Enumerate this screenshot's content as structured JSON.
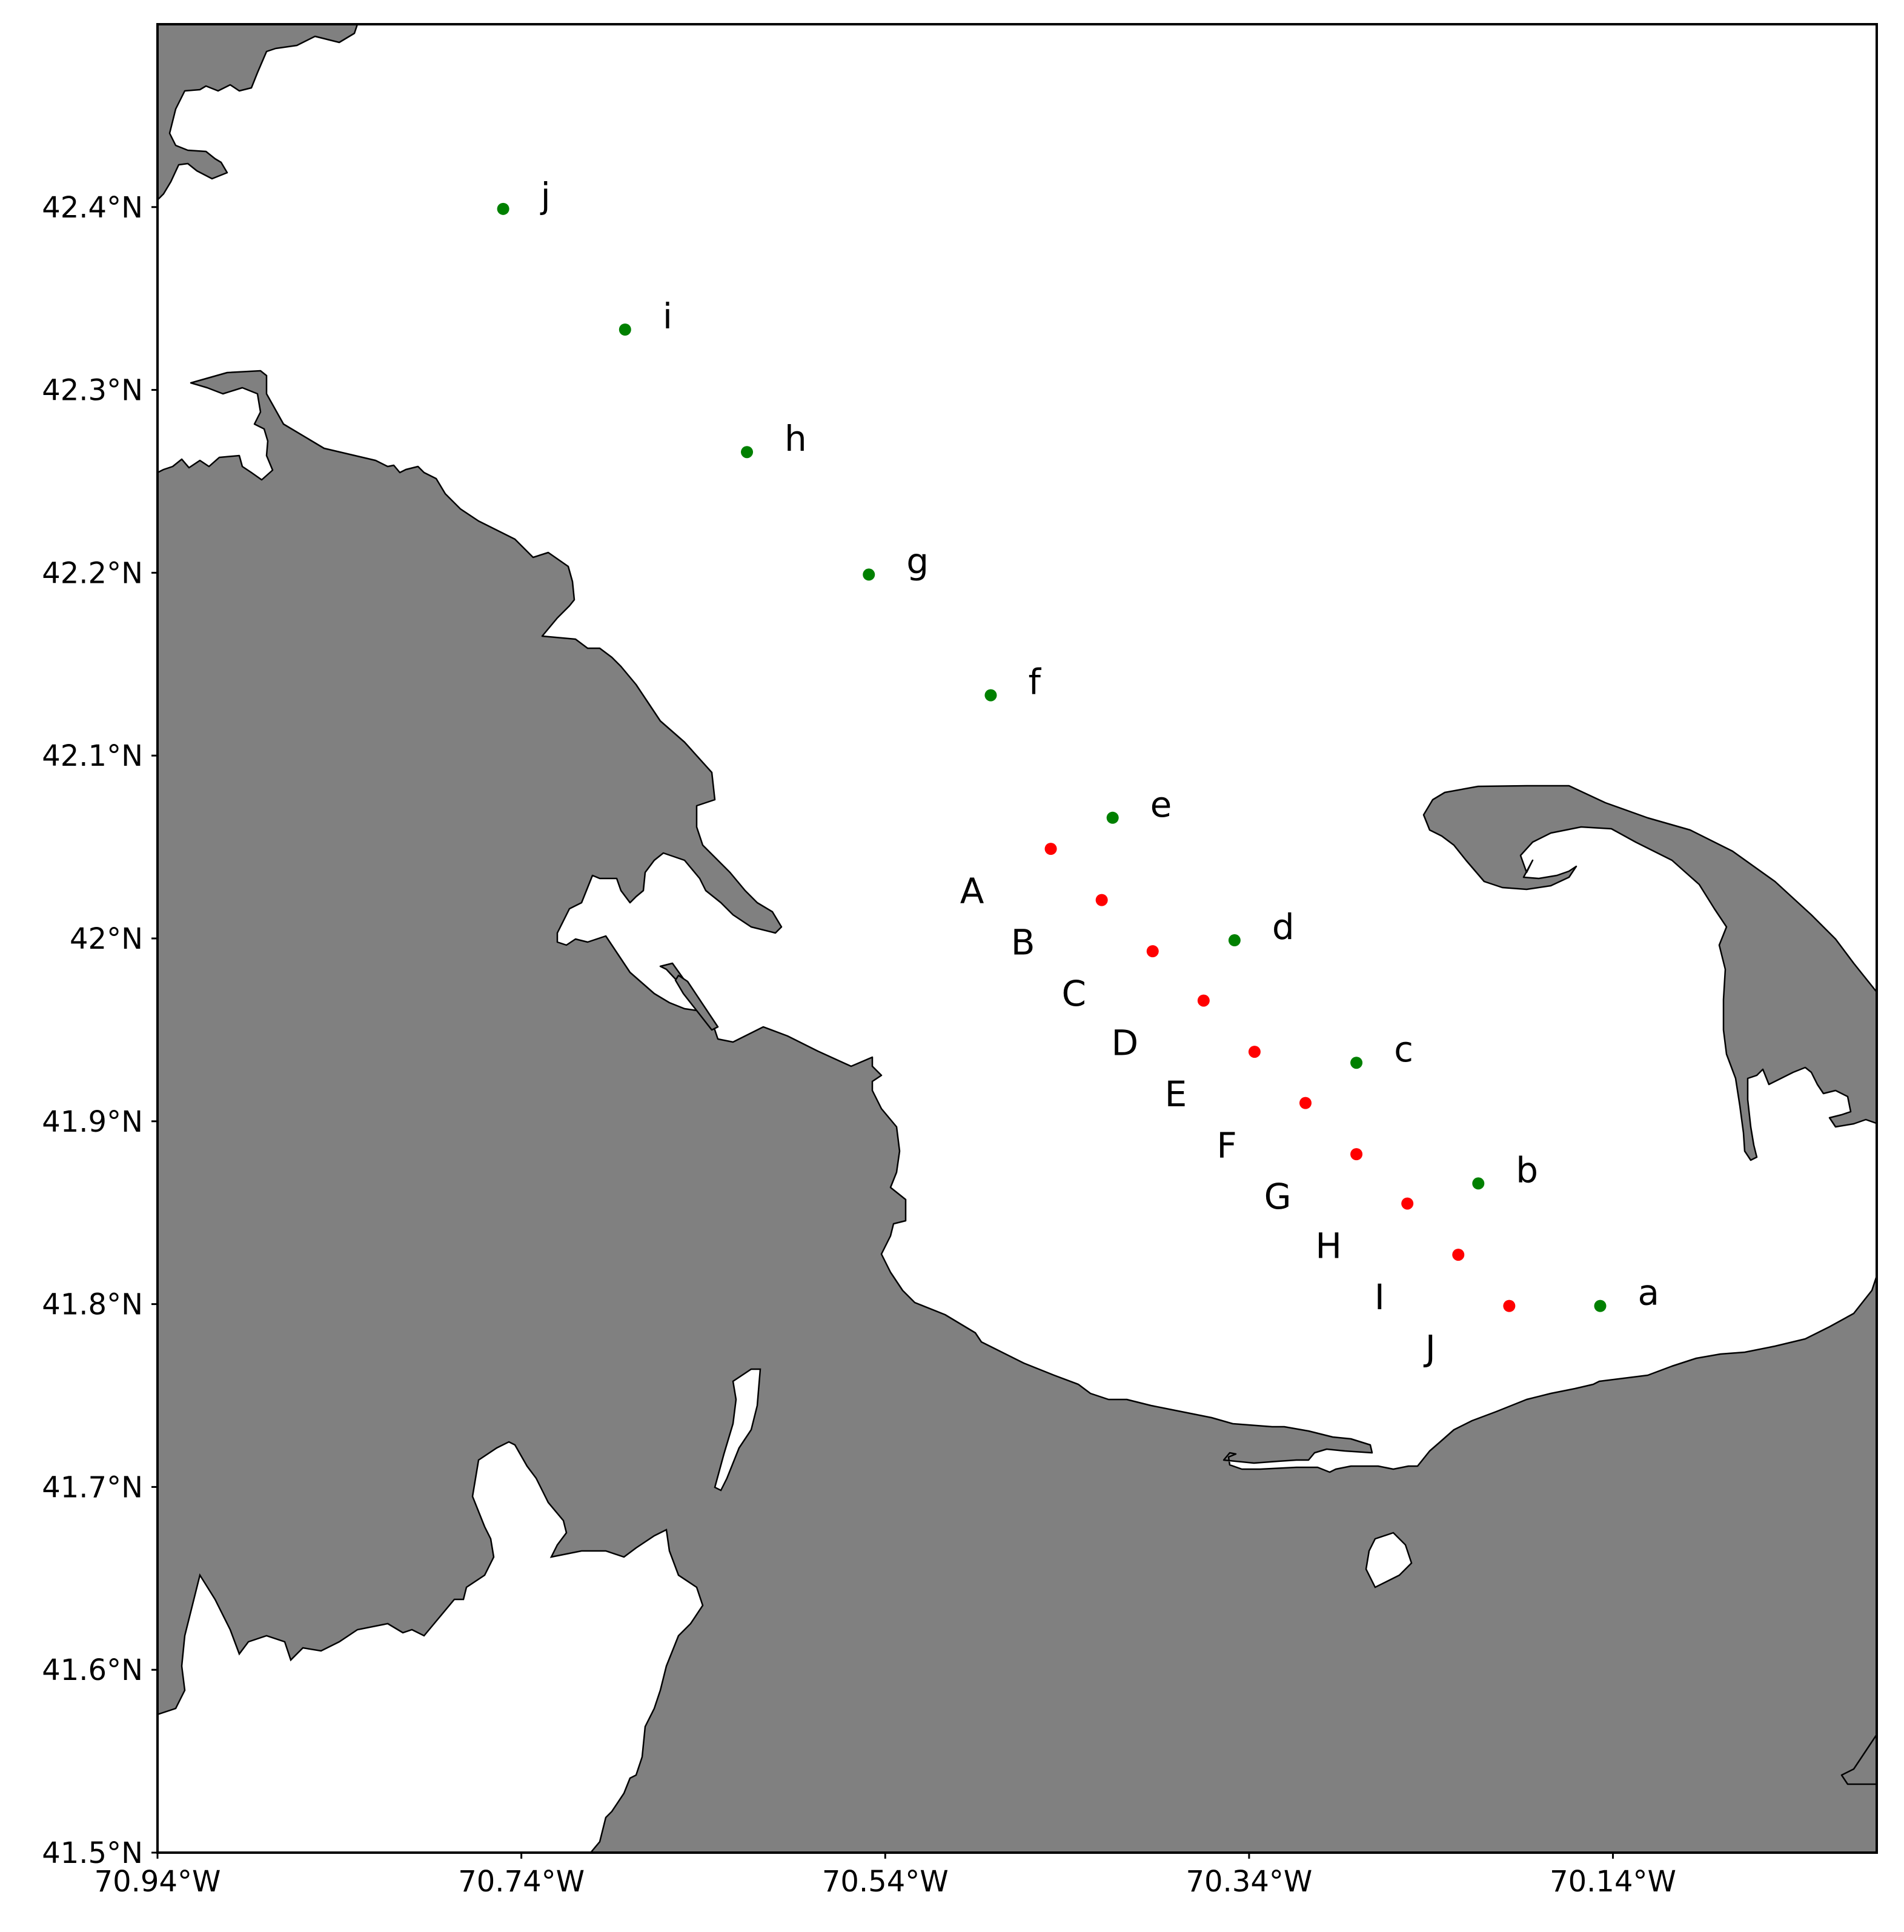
{
  "map": {
    "projection": "PlateCarree",
    "extent": {
      "lon_min": -70.94,
      "lon_max": -69.995,
      "lat_min": 41.5,
      "lat_max": 42.5
    },
    "land_color": "#808080",
    "water_color": "#ffffff",
    "x_ticks": [
      {
        "lon": -70.94,
        "label": "70.94°W"
      },
      {
        "lon": -70.74,
        "label": "70.74°W"
      },
      {
        "lon": -70.54,
        "label": "70.54°W"
      },
      {
        "lon": -70.34,
        "label": "70.34°W"
      },
      {
        "lon": -70.14,
        "label": "70.14°W"
      }
    ],
    "y_ticks": [
      {
        "lat": 42.4,
        "label": "42.4°N"
      },
      {
        "lat": 42.3,
        "label": "42.3°N"
      },
      {
        "lat": 42.2,
        "label": "42.2°N"
      },
      {
        "lat": 42.1,
        "label": "42.1°N"
      },
      {
        "lat": 42.0,
        "label": "42°N"
      },
      {
        "lat": 41.9,
        "label": "41.9°N"
      },
      {
        "lat": 41.8,
        "label": "41.8°N"
      },
      {
        "lat": 41.7,
        "label": "41.7°N"
      },
      {
        "lat": 41.6,
        "label": "41.6°N"
      },
      {
        "lat": 41.5,
        "label": "41.5°N"
      }
    ],
    "green_stations": {
      "color": "#008000",
      "points": [
        {
          "label": "a",
          "lon": -70.147,
          "lat": 41.799
        },
        {
          "label": "b",
          "lon": -70.214,
          "lat": 41.866
        },
        {
          "label": "c",
          "lon": -70.281,
          "lat": 41.932
        },
        {
          "label": "d",
          "lon": -70.348,
          "lat": 41.999
        },
        {
          "label": "e",
          "lon": -70.415,
          "lat": 42.066
        },
        {
          "label": "f",
          "lon": -70.482,
          "lat": 42.133
        },
        {
          "label": "g",
          "lon": -70.549,
          "lat": 42.199
        },
        {
          "label": "h",
          "lon": -70.616,
          "lat": 42.266
        },
        {
          "label": "i",
          "lon": -70.683,
          "lat": 42.333
        },
        {
          "label": "j",
          "lon": -70.75,
          "lat": 42.399
        }
      ]
    },
    "red_stations": {
      "color": "#ff0000",
      "points": [
        {
          "label": "A",
          "lon": -70.449,
          "lat": 42.049
        },
        {
          "label": "B",
          "lon": -70.421,
          "lat": 42.021
        },
        {
          "label": "C",
          "lon": -70.393,
          "lat": 41.993
        },
        {
          "label": "D",
          "lon": -70.365,
          "lat": 41.966
        },
        {
          "label": "E",
          "lon": -70.337,
          "lat": 41.938
        },
        {
          "label": "F",
          "lon": -70.309,
          "lat": 41.91
        },
        {
          "label": "G",
          "lon": -70.281,
          "lat": 41.882
        },
        {
          "label": "H",
          "lon": -70.253,
          "lat": 41.855
        },
        {
          "label": "I",
          "lon": -70.225,
          "lat": 41.827
        },
        {
          "label": "J",
          "lon": -70.197,
          "lat": 41.799
        }
      ]
    }
  }
}
